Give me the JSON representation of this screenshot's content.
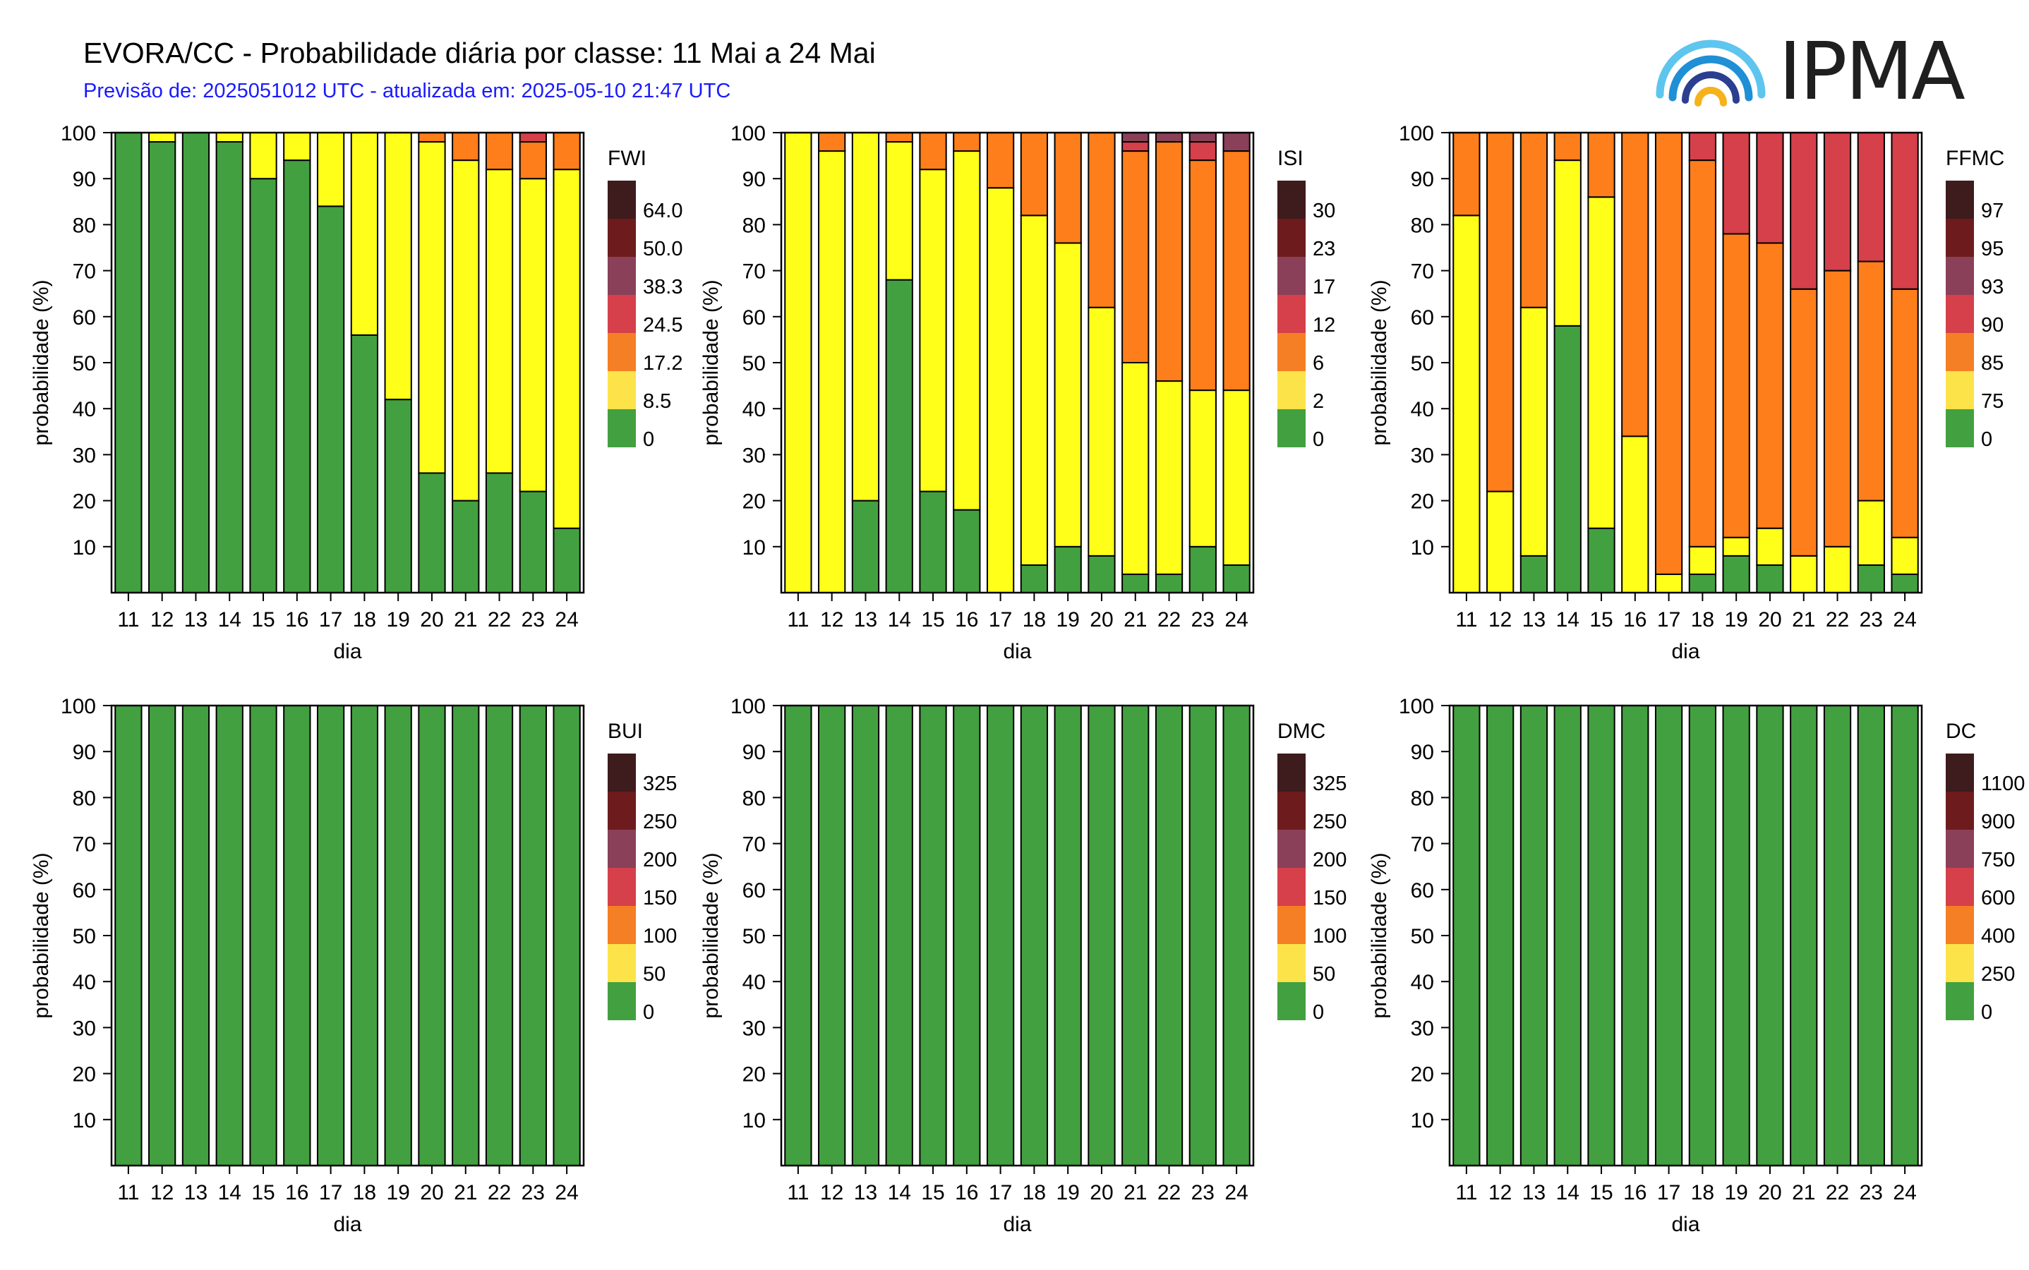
{
  "header": {
    "title": "EVORA/CC - Probabilidade diária por classe: 11 Mai a 24 Mai",
    "subtitle": "Previsão de: 2025051012 UTC - atualizada em: 2025-05-10 21:47 UTC",
    "logo_text": "IPMA"
  },
  "colors": {
    "class_colors": [
      "#43a040",
      "#ffff1a",
      "#fd7e1a",
      "#d5404a",
      "#8a4058",
      "#6d1b1d",
      "#3e1b1c"
    ],
    "legend_colors": [
      "#43a040",
      "#fde34a",
      "#f57f24",
      "#d5404a",
      "#8a4058",
      "#6d1b1d",
      "#3e1b1c"
    ]
  },
  "chart_data": [
    {
      "type": "bar",
      "stacked": true,
      "index": "FWI",
      "xlabel": "dia",
      "ylabel": "probabilidade (%)",
      "ylim": [
        0,
        100
      ],
      "yticks": [
        10,
        20,
        30,
        40,
        50,
        60,
        70,
        80,
        90,
        100
      ],
      "categories": [
        "11",
        "12",
        "13",
        "14",
        "15",
        "16",
        "17",
        "18",
        "19",
        "20",
        "21",
        "22",
        "23",
        "24"
      ],
      "legend": [
        "0",
        "8.5",
        "17.2",
        "24.5",
        "38.3",
        "50.0",
        "64.0"
      ],
      "series": [
        {
          "values": [
            100,
            98,
            100,
            98,
            90,
            94,
            84,
            56,
            42,
            26,
            20,
            26,
            22,
            14
          ]
        },
        {
          "values": [
            0,
            2,
            0,
            2,
            10,
            6,
            16,
            44,
            58,
            72,
            74,
            66,
            68,
            78
          ]
        },
        {
          "values": [
            0,
            0,
            0,
            0,
            0,
            0,
            0,
            0,
            0,
            2,
            6,
            8,
            8,
            8
          ]
        },
        {
          "values": [
            0,
            0,
            0,
            0,
            0,
            0,
            0,
            0,
            0,
            0,
            0,
            0,
            2,
            0
          ]
        },
        {
          "values": [
            0,
            0,
            0,
            0,
            0,
            0,
            0,
            0,
            0,
            0,
            0,
            0,
            0,
            0
          ]
        },
        {
          "values": [
            0,
            0,
            0,
            0,
            0,
            0,
            0,
            0,
            0,
            0,
            0,
            0,
            0,
            0
          ]
        },
        {
          "values": [
            0,
            0,
            0,
            0,
            0,
            0,
            0,
            0,
            0,
            0,
            0,
            0,
            0,
            0
          ]
        }
      ]
    },
    {
      "type": "bar",
      "stacked": true,
      "index": "ISI",
      "xlabel": "dia",
      "ylabel": "probabilidade (%)",
      "ylim": [
        0,
        100
      ],
      "yticks": [
        10,
        20,
        30,
        40,
        50,
        60,
        70,
        80,
        90,
        100
      ],
      "categories": [
        "11",
        "12",
        "13",
        "14",
        "15",
        "16",
        "17",
        "18",
        "19",
        "20",
        "21",
        "22",
        "23",
        "24"
      ],
      "legend": [
        "0",
        "2",
        "6",
        "12",
        "17",
        "23",
        "30"
      ],
      "series": [
        {
          "values": [
            0,
            0,
            20,
            68,
            22,
            18,
            0,
            6,
            10,
            8,
            4,
            4,
            10,
            6
          ]
        },
        {
          "values": [
            100,
            96,
            80,
            30,
            70,
            78,
            88,
            76,
            66,
            54,
            46,
            42,
            34,
            38
          ]
        },
        {
          "values": [
            0,
            4,
            0,
            2,
            8,
            4,
            12,
            18,
            24,
            38,
            46,
            52,
            50,
            52
          ]
        },
        {
          "values": [
            0,
            0,
            0,
            0,
            0,
            0,
            0,
            0,
            0,
            0,
            2,
            0,
            4,
            0
          ]
        },
        {
          "values": [
            0,
            0,
            0,
            0,
            0,
            0,
            0,
            0,
            0,
            0,
            2,
            2,
            2,
            4
          ]
        },
        {
          "values": [
            0,
            0,
            0,
            0,
            0,
            0,
            0,
            0,
            0,
            0,
            0,
            0,
            0,
            0
          ]
        },
        {
          "values": [
            0,
            0,
            0,
            0,
            0,
            0,
            0,
            0,
            0,
            0,
            0,
            0,
            0,
            0
          ]
        }
      ]
    },
    {
      "type": "bar",
      "stacked": true,
      "index": "FFMC",
      "xlabel": "dia",
      "ylabel": "probabilidade (%)",
      "ylim": [
        0,
        100
      ],
      "yticks": [
        10,
        20,
        30,
        40,
        50,
        60,
        70,
        80,
        90,
        100
      ],
      "categories": [
        "11",
        "12",
        "13",
        "14",
        "15",
        "16",
        "17",
        "18",
        "19",
        "20",
        "21",
        "22",
        "23",
        "24"
      ],
      "legend": [
        "0",
        "75",
        "85",
        "90",
        "93",
        "95",
        "97"
      ],
      "series": [
        {
          "values": [
            0,
            0,
            8,
            58,
            14,
            0,
            0,
            4,
            8,
            6,
            0,
            0,
            6,
            4
          ]
        },
        {
          "values": [
            82,
            22,
            54,
            36,
            72,
            34,
            4,
            6,
            4,
            8,
            8,
            10,
            14,
            8
          ]
        },
        {
          "values": [
            18,
            78,
            38,
            6,
            14,
            66,
            96,
            84,
            66,
            62,
            58,
            60,
            52,
            54
          ]
        },
        {
          "values": [
            0,
            0,
            0,
            0,
            0,
            0,
            0,
            6,
            22,
            24,
            34,
            30,
            28,
            34
          ]
        },
        {
          "values": [
            0,
            0,
            0,
            0,
            0,
            0,
            0,
            0,
            0,
            0,
            0,
            0,
            0,
            0
          ]
        },
        {
          "values": [
            0,
            0,
            0,
            0,
            0,
            0,
            0,
            0,
            0,
            0,
            0,
            0,
            0,
            0
          ]
        },
        {
          "values": [
            0,
            0,
            0,
            0,
            0,
            0,
            0,
            0,
            0,
            0,
            0,
            0,
            0,
            0
          ]
        }
      ]
    },
    {
      "type": "bar",
      "stacked": true,
      "index": "BUI",
      "xlabel": "dia",
      "ylabel": "probabilidade (%)",
      "ylim": [
        0,
        100
      ],
      "yticks": [
        10,
        20,
        30,
        40,
        50,
        60,
        70,
        80,
        90,
        100
      ],
      "categories": [
        "11",
        "12",
        "13",
        "14",
        "15",
        "16",
        "17",
        "18",
        "19",
        "20",
        "21",
        "22",
        "23",
        "24"
      ],
      "legend": [
        "0",
        "50",
        "100",
        "150",
        "200",
        "250",
        "325"
      ],
      "series": [
        {
          "values": [
            100,
            100,
            100,
            100,
            100,
            100,
            100,
            100,
            100,
            100,
            100,
            100,
            100,
            100
          ]
        }
      ]
    },
    {
      "type": "bar",
      "stacked": true,
      "index": "DMC",
      "xlabel": "dia",
      "ylabel": "probabilidade (%)",
      "ylim": [
        0,
        100
      ],
      "yticks": [
        10,
        20,
        30,
        40,
        50,
        60,
        70,
        80,
        90,
        100
      ],
      "categories": [
        "11",
        "12",
        "13",
        "14",
        "15",
        "16",
        "17",
        "18",
        "19",
        "20",
        "21",
        "22",
        "23",
        "24"
      ],
      "legend": [
        "0",
        "50",
        "100",
        "150",
        "200",
        "250",
        "325"
      ],
      "series": [
        {
          "values": [
            100,
            100,
            100,
            100,
            100,
            100,
            100,
            100,
            100,
            100,
            100,
            100,
            100,
            100
          ]
        }
      ]
    },
    {
      "type": "bar",
      "stacked": true,
      "index": "DC",
      "xlabel": "dia",
      "ylabel": "probabilidade (%)",
      "ylim": [
        0,
        100
      ],
      "yticks": [
        10,
        20,
        30,
        40,
        50,
        60,
        70,
        80,
        90,
        100
      ],
      "categories": [
        "11",
        "12",
        "13",
        "14",
        "15",
        "16",
        "17",
        "18",
        "19",
        "20",
        "21",
        "22",
        "23",
        "24"
      ],
      "legend": [
        "0",
        "250",
        "400",
        "600",
        "750",
        "900",
        "1100"
      ],
      "series": [
        {
          "values": [
            100,
            100,
            100,
            100,
            100,
            100,
            100,
            100,
            100,
            100,
            100,
            100,
            100,
            100
          ]
        }
      ]
    }
  ]
}
